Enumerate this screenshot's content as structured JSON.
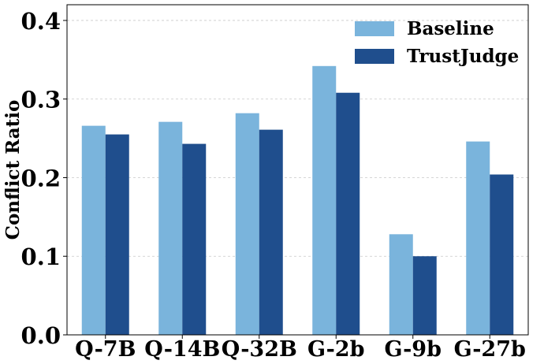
{
  "chart_data": {
    "type": "bar",
    "title": "",
    "xlabel": "",
    "ylabel": "Conflict Ratio",
    "ylim": [
      0,
      0.42
    ],
    "yticks": [
      "0.0",
      "0.1",
      "0.2",
      "0.3",
      "0.4"
    ],
    "categories": [
      "Q-7B",
      "Q-14B",
      "Q-32B",
      "G-2b",
      "G-9b",
      "G-27b"
    ],
    "series": [
      {
        "name": "Baseline",
        "color": "#7ab4dc",
        "values": [
          0.266,
          0.271,
          0.282,
          0.342,
          0.128,
          0.246
        ]
      },
      {
        "name": "TrustJudge",
        "color": "#1f4e8d",
        "values": [
          0.255,
          0.243,
          0.261,
          0.308,
          0.1,
          0.204
        ]
      }
    ],
    "grid": "y-dashed",
    "legend": "top-right"
  }
}
